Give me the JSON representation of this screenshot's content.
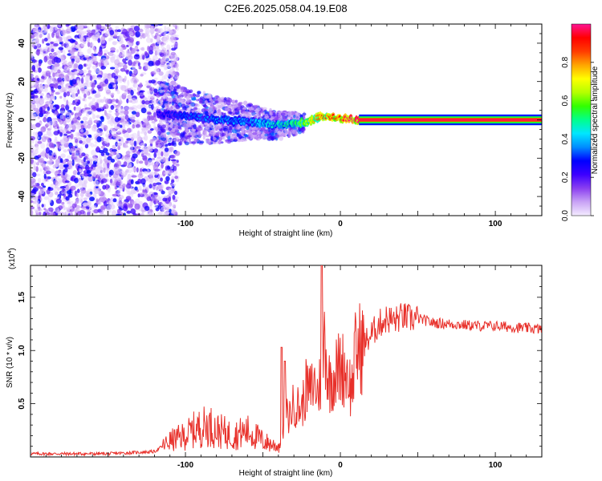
{
  "figure_title": "C2E6.2025.058.04.19.E08",
  "chart_data": [
    {
      "type": "heatmap",
      "title": "",
      "xlabel": "Height of straight line (km)",
      "ylabel": "Frequency (Hz)",
      "xlim": [
        -200,
        130
      ],
      "ylim": [
        -50,
        50
      ],
      "x_ticks": [
        -100,
        0,
        100
      ],
      "y_ticks": [
        -40,
        -20,
        0,
        20,
        40
      ],
      "grid": false,
      "colorbar": {
        "label": "Normalized spectral amplitude",
        "range": [
          0,
          1
        ],
        "ticks": [
          "0.0",
          "0.2",
          "0.4",
          "0.6",
          "0.8"
        ],
        "ticks_values": [
          0.0,
          0.2,
          0.4,
          0.6,
          0.8
        ],
        "colors": [
          "#f4ecff",
          "#c9a3f5",
          "#8a3ff0",
          "#3c00ff",
          "#0000ff",
          "#008cff",
          "#00e6ff",
          "#00ff8c",
          "#32ff00",
          "#b4ff00",
          "#ffff00",
          "#ffa500",
          "#ff3c00",
          "#ff0000",
          "#ff1493"
        ]
      },
      "ridge": {
        "description_points_x": [
          -115,
          -100,
          -80,
          -60,
          -40,
          -30,
          -20,
          -15,
          -10,
          0,
          10,
          20,
          60,
          130
        ],
        "center_freq": [
          3,
          2,
          0,
          -1,
          -3,
          -2,
          -1,
          1,
          2,
          1,
          0,
          0,
          0,
          0
        ],
        "amplitude": [
          0.25,
          0.3,
          0.35,
          0.35,
          0.45,
          0.5,
          0.65,
          0.75,
          0.8,
          0.85,
          0.95,
          1.0,
          1.0,
          1.0
        ]
      }
    },
    {
      "type": "line",
      "title": "",
      "xlabel": "Height of straight line (km)",
      "ylabel": "SNR (10 * v/v)",
      "y_scale_label": "(x10",
      "y_scale_exponent": "4",
      "y_scale_suffix": ")",
      "xlim": [
        -200,
        130
      ],
      "ylim": [
        0,
        18000
      ],
      "x_ticks": [
        -100,
        0,
        100
      ],
      "y_ticks": [
        5000,
        10000,
        15000
      ],
      "y_tick_labels": [
        "0.5",
        "1.0",
        "1.5"
      ],
      "line_color": "#e8302a",
      "grid": false,
      "series": [
        {
          "x": [
            -200,
            -150,
            -120,
            -110,
            -100,
            -95,
            -85,
            -80,
            -75,
            -70,
            -65,
            -60,
            -55,
            -50,
            -45,
            -40,
            -36,
            -35,
            -34,
            -30,
            -25,
            -22,
            -20,
            -17,
            -15,
            -12,
            -10,
            -8,
            -5,
            0,
            5,
            7,
            10,
            15,
            20,
            25,
            30,
            35,
            40,
            45,
            50,
            60,
            70,
            80,
            90,
            100,
            110,
            120,
            130
          ],
          "y": [
            300,
            300,
            500,
            1500,
            2000,
            2500,
            3000,
            2500,
            2300,
            2000,
            2200,
            2400,
            2000,
            1500,
            1200,
            1000,
            2000,
            4500,
            3500,
            5000,
            4500,
            6500,
            6000,
            7000,
            6000,
            7500,
            12000,
            7000,
            7500,
            8500,
            8000,
            6000,
            10000,
            10500,
            11500,
            12500,
            13000,
            12800,
            13200,
            13000,
            13000,
            12600,
            12500,
            12400,
            12300,
            12300,
            12200,
            12100,
            12000
          ]
        }
      ]
    }
  ]
}
